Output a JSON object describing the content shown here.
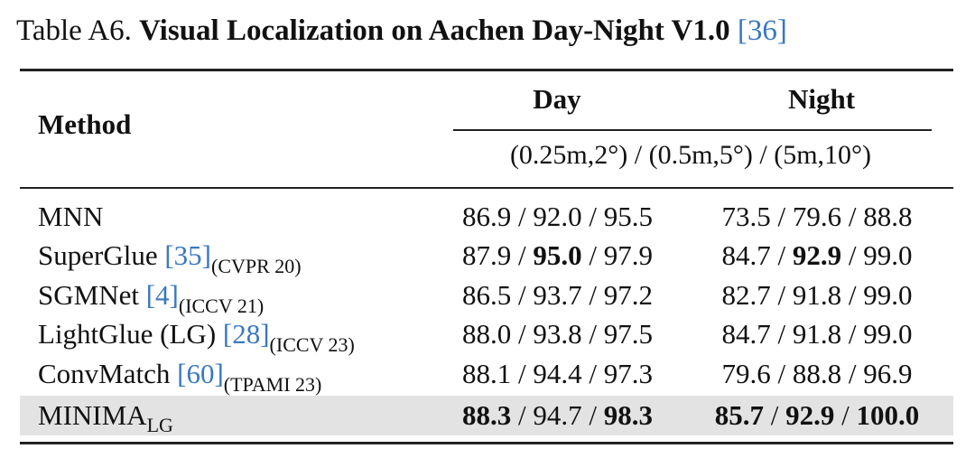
{
  "caption": {
    "prefix": "Table A6.",
    "title": "Visual Localization on Aachen Day-Night V1.0",
    "cite": "[36]"
  },
  "header": {
    "method": "Method",
    "day": "Day",
    "night": "Night",
    "thresholds": "(0.25m,2°) / (0.5m,5°) / (5m,10°)"
  },
  "rows": [
    {
      "method": "MNN",
      "cite": "",
      "venue": "",
      "subscript": "",
      "day": [
        "86.9",
        "92.0",
        "95.5"
      ],
      "day_bold": [
        false,
        false,
        false
      ],
      "night": [
        "73.5",
        "79.6",
        "88.8"
      ],
      "night_bold": [
        false,
        false,
        false
      ]
    },
    {
      "method": "SuperGlue",
      "cite": "[35]",
      "venue": "(CVPR 20)",
      "subscript": "",
      "day": [
        "87.9",
        "95.0",
        "97.9"
      ],
      "day_bold": [
        false,
        true,
        false
      ],
      "night": [
        "84.7",
        "92.9",
        "99.0"
      ],
      "night_bold": [
        false,
        true,
        false
      ]
    },
    {
      "method": "SGMNet",
      "cite": "[4]",
      "venue": "(ICCV 21)",
      "subscript": "",
      "day": [
        "86.5",
        "93.7",
        "97.2"
      ],
      "day_bold": [
        false,
        false,
        false
      ],
      "night": [
        "82.7",
        "91.8",
        "99.0"
      ],
      "night_bold": [
        false,
        false,
        false
      ]
    },
    {
      "method": "LightGlue (LG)",
      "cite": "[28]",
      "venue": "(ICCV 23)",
      "subscript": "",
      "day": [
        "88.0",
        "93.8",
        "97.5"
      ],
      "day_bold": [
        false,
        false,
        false
      ],
      "night": [
        "84.7",
        "91.8",
        "99.0"
      ],
      "night_bold": [
        false,
        false,
        false
      ]
    },
    {
      "method": "ConvMatch",
      "cite": "[60]",
      "venue": "(TPAMI 23)",
      "subscript": "",
      "day": [
        "88.1",
        "94.4",
        "97.3"
      ],
      "day_bold": [
        false,
        false,
        false
      ],
      "night": [
        "79.6",
        "88.8",
        "96.9"
      ],
      "night_bold": [
        false,
        false,
        false
      ]
    },
    {
      "method": "MINIMA",
      "cite": "",
      "venue": "",
      "subscript": "LG",
      "day": [
        "88.3",
        "94.7",
        "98.3"
      ],
      "day_bold": [
        true,
        false,
        true
      ],
      "night": [
        "85.7",
        "92.9",
        "100.0"
      ],
      "night_bold": [
        true,
        true,
        true
      ]
    }
  ]
}
